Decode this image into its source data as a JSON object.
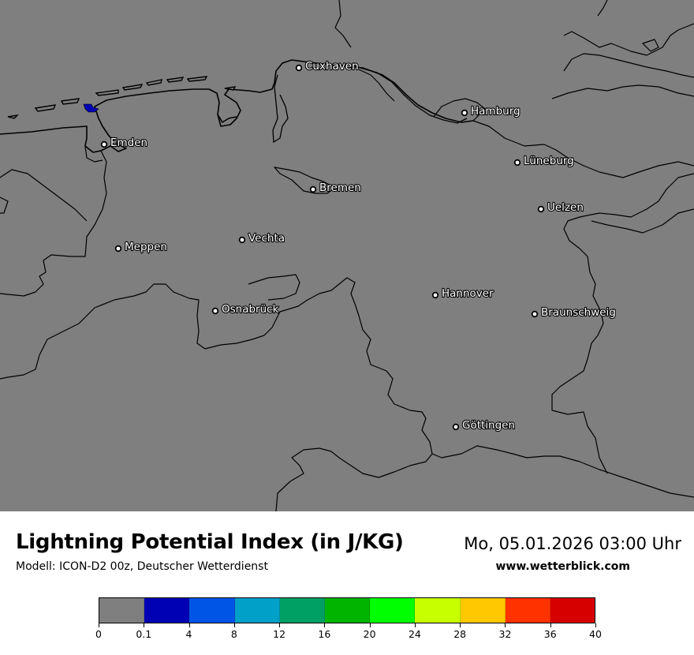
{
  "map": {
    "background_color": "#7f7f7f",
    "cities": [
      {
        "name": "Cuxhaven",
        "key": "cuxhaven"
      },
      {
        "name": "Hamburg",
        "key": "hamburg"
      },
      {
        "name": "Emden",
        "key": "emden"
      },
      {
        "name": "Lüneburg",
        "key": "lueneburg"
      },
      {
        "name": "Bremen",
        "key": "bremen"
      },
      {
        "name": "Uelzen",
        "key": "uelzen"
      },
      {
        "name": "Vechta",
        "key": "vechta"
      },
      {
        "name": "Meppen",
        "key": "meppen"
      },
      {
        "name": "Hannover",
        "key": "hannover"
      },
      {
        "name": "Osnabrück",
        "key": "osnabrueck"
      },
      {
        "name": "Braunschweig",
        "key": "braunschweig"
      },
      {
        "name": "Göttingen",
        "key": "goettingen"
      }
    ],
    "highlight_color": "#0000b4"
  },
  "header": {
    "title": "Lightning Potential Index (in J/KG)",
    "subtitle": "Modell: ICON-D2 00z, Deutscher Wetterdienst",
    "datetime": "Mo, 05.01.2026 03:00 Uhr",
    "website": "www.wetterblick.com"
  },
  "legend": {
    "colors": [
      "#7f7f7f",
      "#0000b4",
      "#0055e6",
      "#00a0c8",
      "#00a064",
      "#00b400",
      "#00ff00",
      "#c8ff00",
      "#ffc800",
      "#ff3200",
      "#d70000"
    ],
    "tick_labels": [
      "0",
      "0.1",
      "4",
      "8",
      "12",
      "16",
      "20",
      "24",
      "28",
      "32",
      "36",
      "40"
    ]
  }
}
